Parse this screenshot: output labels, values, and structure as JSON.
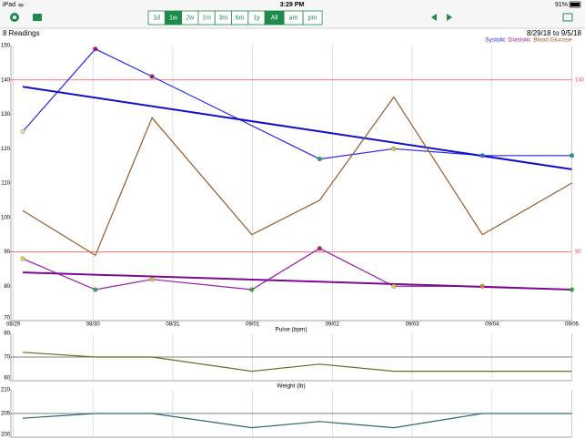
{
  "status_bar": {
    "carrier": "iPad",
    "time": "3:29 PM",
    "battery": "91%"
  },
  "toolbar": {
    "ranges": [
      "1d",
      "1w",
      "2w",
      "1m",
      "3m",
      "6m",
      "1y",
      "All",
      "am",
      "pm"
    ],
    "selected": [
      1,
      7
    ],
    "accent": "#1e8a4c"
  },
  "summary": {
    "readings": "8 Readings",
    "date_range": "8/29/18 to 9/5/18"
  },
  "chart_data": [
    {
      "type": "line",
      "xlim": [
        0,
        7
      ],
      "xticks": [
        {
          "value": 0,
          "label": "08/29"
        },
        {
          "value": 1,
          "label": "08/30"
        },
        {
          "value": 2,
          "label": "08/31"
        },
        {
          "value": 3,
          "label": "09/01"
        },
        {
          "value": 4,
          "label": "09/02"
        },
        {
          "value": 5,
          "label": "09/03"
        },
        {
          "value": 6,
          "label": "09/04"
        },
        {
          "value": 7,
          "label": "09/05"
        }
      ],
      "ylim": [
        70,
        150
      ],
      "yticks": [
        70,
        80,
        90,
        100,
        110,
        120,
        130,
        140,
        150
      ],
      "reference_lines": [
        140,
        90
      ],
      "reference_color": "#ff4d4d",
      "reference_labeled": true,
      "series": [
        {
          "name": "Systolic",
          "color": "#2a2ae8",
          "x": [
            0.12,
            1.03,
            1.74,
            3.84,
            4.77,
            5.88,
            7.0
          ],
          "values": [
            125,
            149,
            141,
            117,
            120,
            118,
            118
          ],
          "marker_colors": [
            "#f2e88a",
            "#a0186e",
            "#a0186e",
            "#1fa37a",
            "#e8c13a",
            "#2a6ad8",
            "#1fa37a"
          ],
          "trend_x": [
            0.12,
            7.0
          ],
          "trend": [
            138,
            114
          ],
          "trend_color": "#1010c8"
        },
        {
          "name": "Diastolic",
          "color": "#9a1aa8",
          "x": [
            0.12,
            1.03,
            1.74,
            2.99,
            3.84,
            4.77,
            5.88,
            7.0
          ],
          "values": [
            88,
            79,
            82,
            79,
            91,
            80,
            80,
            79
          ],
          "marker_colors": [
            "#f2d23a",
            "#3aa84a",
            "#e8b83a",
            "#3aa84a",
            "#c0186e",
            "#f2c23a",
            "#e87a2a",
            "#3aa84a"
          ],
          "trend_x": [
            0.12,
            7.0
          ],
          "trend": [
            84,
            79
          ],
          "trend_color": "#7a0a90"
        },
        {
          "name": "Blood Glucose",
          "color": "#9a5a2a",
          "x": [
            0.12,
            1.03,
            1.74,
            2.99,
            3.84,
            4.77,
            5.88,
            7.0
          ],
          "values": [
            102,
            89,
            129,
            95,
            105,
            135,
            95,
            110
          ]
        }
      ]
    },
    {
      "type": "line",
      "title": "Pulse (bpm)",
      "xlim": [
        0,
        7
      ],
      "ylim": [
        60,
        80
      ],
      "yticks": [
        60,
        70,
        80
      ],
      "reference_lines": [
        70
      ],
      "reference_color": "#555555",
      "reference_labeled": false,
      "series": [
        {
          "color": "#6e6a2a",
          "x": [
            0.12,
            1.03,
            1.74,
            2.99,
            3.84,
            4.77,
            5.88,
            7.0
          ],
          "values": [
            72,
            70,
            70,
            64,
            67,
            64,
            64,
            64
          ]
        }
      ]
    },
    {
      "type": "line",
      "title": "Weight (lb)",
      "xlim": [
        0,
        7
      ],
      "ylim": [
        200,
        210
      ],
      "yticks": [
        200,
        205,
        210
      ],
      "reference_lines": [
        205
      ],
      "reference_color": "#555555",
      "reference_labeled": false,
      "series": [
        {
          "color": "#2a6a6a",
          "x": [
            0.12,
            1.03,
            1.74,
            2.99,
            3.84,
            4.77,
            5.88,
            7.0
          ],
          "values": [
            204,
            205,
            205,
            202,
            203.3,
            202,
            205,
            205
          ]
        }
      ]
    }
  ]
}
